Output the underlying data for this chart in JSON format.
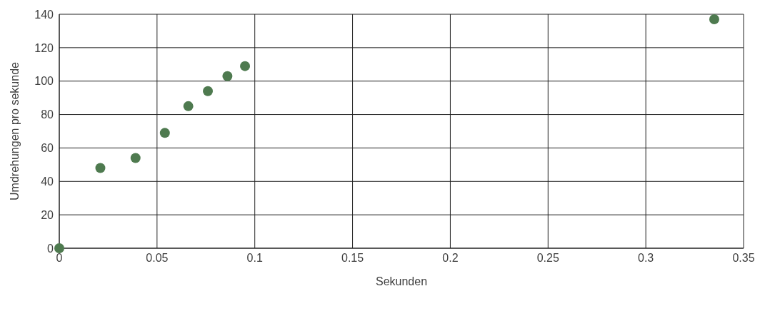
{
  "chart_data": {
    "type": "scatter",
    "xlabel": "Sekunden",
    "ylabel": "Umdrehungen pro sekunde",
    "x": [
      0,
      0.021,
      0.039,
      0.054,
      0.066,
      0.076,
      0.086,
      0.095,
      0.335
    ],
    "values": [
      0,
      48,
      54,
      69,
      85,
      94,
      103,
      109,
      137
    ],
    "color": "#4e7a4f",
    "marker": "circle",
    "xlim": [
      0,
      0.35
    ],
    "xticks": [
      0,
      0.05,
      0.1,
      0.15,
      0.2,
      0.25,
      0.3,
      0.35
    ],
    "ylim": [
      0,
      140
    ],
    "yticks": [
      0,
      20,
      40,
      60,
      80,
      100,
      120,
      140
    ],
    "grid": true
  }
}
